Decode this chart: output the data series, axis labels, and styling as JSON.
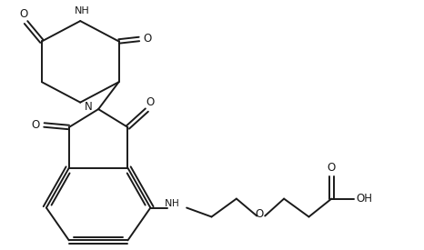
{
  "background_color": "#ffffff",
  "line_color": "#1a1a1a",
  "line_width": 1.4,
  "figsize": [
    4.66,
    2.75
  ],
  "dpi": 100,
  "xlim": [
    0,
    9.32
  ],
  "ylim": [
    0,
    5.5
  ]
}
